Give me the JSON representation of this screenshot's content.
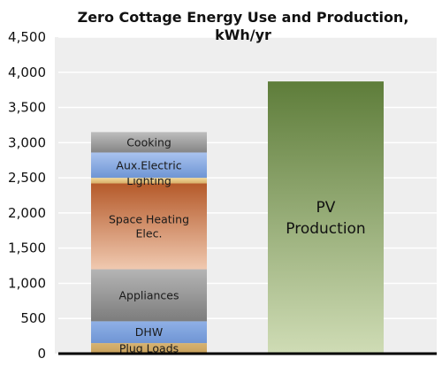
{
  "chart_data": {
    "type": "bar",
    "title_lines": [
      "Zero Cottage Energy Use and Production,",
      "kWh/yr"
    ],
    "xlabel": "",
    "ylabel": "",
    "ylim": [
      0,
      4500
    ],
    "yticks": [
      "0",
      "500",
      "1,000",
      "1,500",
      "2,000",
      "2,500",
      "3,000",
      "3,500",
      "4,000",
      "4,500"
    ],
    "ytick_values": [
      0,
      500,
      1000,
      1500,
      2000,
      2500,
      3000,
      3500,
      4000,
      4500
    ],
    "grid": true,
    "background": "#eeeeee",
    "stacked_bar": {
      "segments": [
        {
          "label_lines": [
            "Plug Loads"
          ],
          "start": 0,
          "end": 150,
          "color_top": "#d7b372",
          "color_bottom": "#c7a05a"
        },
        {
          "label_lines": [
            "DHW"
          ],
          "start": 150,
          "end": 460,
          "color_top": "#8fb0e6",
          "color_bottom": "#6f95d4"
        },
        {
          "label_lines": [
            "Appliances"
          ],
          "start": 460,
          "end": 1200,
          "color_top": "#b5b5b5",
          "color_bottom": "#7c7c7c"
        },
        {
          "label_lines": [
            "Space Heating",
            "Elec."
          ],
          "start": 1200,
          "end": 2420,
          "color_top": "#b55a2a",
          "color_bottom": "#f0c9b0"
        },
        {
          "label_lines": [
            "Lighting"
          ],
          "start": 2420,
          "end": 2500,
          "color_top": "#f2d89a",
          "color_bottom": "#d8b068"
        },
        {
          "label_lines": [
            "Aux.Electric"
          ],
          "start": 2500,
          "end": 2860,
          "color_top": "#a9c3ef",
          "color_bottom": "#6f95d4"
        },
        {
          "label_lines": [
            "Cooking"
          ],
          "start": 2860,
          "end": 3150,
          "color_top": "#bdbdbd",
          "color_bottom": "#858585"
        }
      ]
    },
    "single_bar": {
      "label_lines": [
        "PV",
        "Production"
      ],
      "value": 3870,
      "color_top": "#5e7d3a",
      "color_bottom": "#cfdcb5"
    }
  }
}
